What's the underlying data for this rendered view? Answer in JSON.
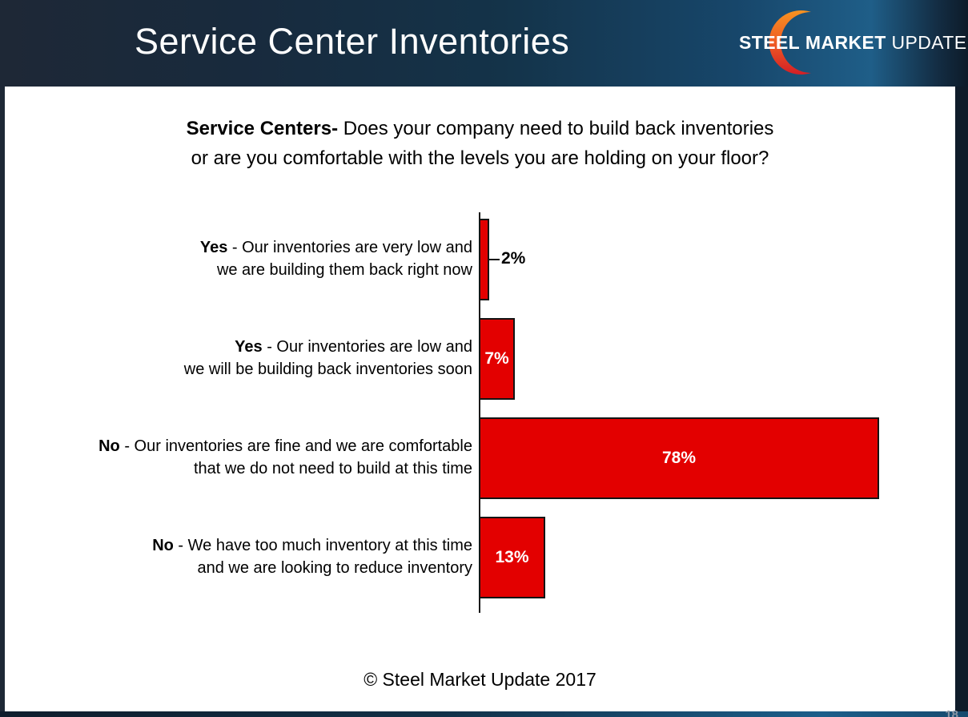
{
  "slide": {
    "header": {
      "title": "Service Center Inventories"
    },
    "logo": {
      "steel": "STEEL",
      "market": "MARKET",
      "update": "UPDATE",
      "crescent_top_color": "#F79321",
      "crescent_bottom_color": "#D31F26"
    },
    "question": {
      "line1_bold": "Service Centers-",
      "line1_rest": " Does your company need to build back inventories",
      "line2": "or are you comfortable with the levels you are holding on your floor?"
    },
    "footer": {
      "copyright": "© Steel Market Update 2017",
      "page_number": "18"
    }
  },
  "chart_data": {
    "type": "bar",
    "orientation": "horizontal",
    "title": "Service Centers- Does your company need to build back inventories or are you comfortable with the levels you are holding on your floor?",
    "categories": [
      "Yes - Our inventories are very low and we are building them back right now",
      "Yes - Our inventories are low and we will be building back inventories soon",
      "No - Our inventories are fine and we are comfortable that we do not need to build at this time",
      "No - We have too much inventory at this time and we are looking to reduce inventory"
    ],
    "values": [
      2,
      7,
      78,
      13
    ],
    "data_labels": [
      "2%",
      "7%",
      "78%",
      "13%"
    ],
    "bar_color": "#E30000",
    "xlim": [
      0,
      80
    ],
    "grid": false,
    "legend": false,
    "rows": [
      {
        "bold": "Yes",
        "text1": " - Our inventories are very low and",
        "text2": "we are building them back right now",
        "value": 2,
        "label": "2%",
        "label_position": "outside"
      },
      {
        "bold": "Yes",
        "text1": " - Our inventories are low and",
        "text2": "we will be building back inventories soon",
        "value": 7,
        "label": "7%",
        "label_position": "inside"
      },
      {
        "bold": "No",
        "text1": " - Our inventories are fine and we are comfortable",
        "text2": "that we do not need to build at this time",
        "value": 78,
        "label": "78%",
        "label_position": "inside"
      },
      {
        "bold": "No",
        "text1": " - We have too much inventory at this time",
        "text2": "and we are looking to reduce inventory",
        "value": 13,
        "label": "13%",
        "label_position": "inside"
      }
    ]
  }
}
